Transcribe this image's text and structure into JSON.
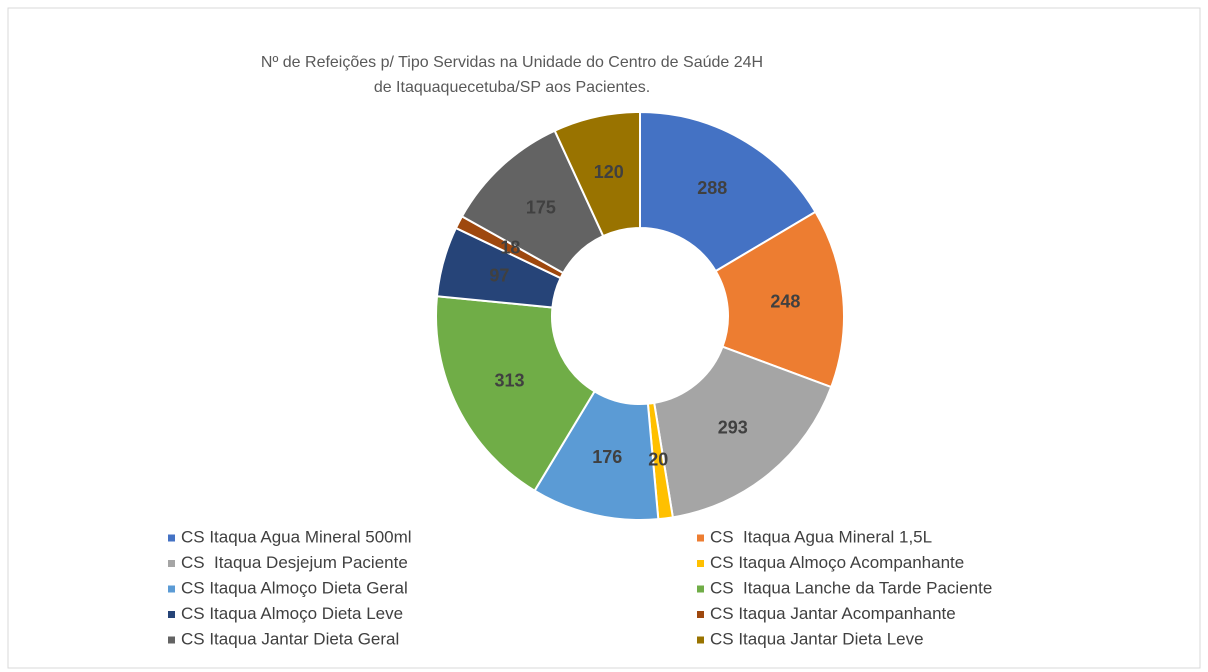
{
  "chart_data": {
    "type": "pie",
    "title": [
      "Nº de Refeições p/ Tipo Servidas na Unidade do Centro de Saúde 24H",
      "de Itaquaquecetuba/SP aos Pacientes."
    ],
    "categories": [
      "CS Itaqua Agua Mineral 500ml",
      "CS  Itaqua Agua Mineral 1,5L",
      "CS  Itaqua Desjejum Paciente",
      "CS Itaqua Almoço Acompanhante",
      "CS Itaqua Almoço Dieta Geral",
      "CS  Itaqua Lanche da Tarde Paciente",
      "CS Itaqua Almoço Dieta Leve",
      "CS Itaqua Jantar Acompanhante",
      "CS Itaqua Jantar Dieta Geral",
      "CS Itaqua Jantar Dieta Leve"
    ],
    "values": [
      288,
      248,
      293,
      20,
      176,
      313,
      97,
      18,
      175,
      120
    ],
    "colors": [
      "#4472c4",
      "#ed7d31",
      "#a5a5a5",
      "#ffc000",
      "#5b9bd5",
      "#70ad47",
      "#264478",
      "#9e480e",
      "#636363",
      "#997300"
    ],
    "donut": true,
    "legend": "bottom"
  }
}
